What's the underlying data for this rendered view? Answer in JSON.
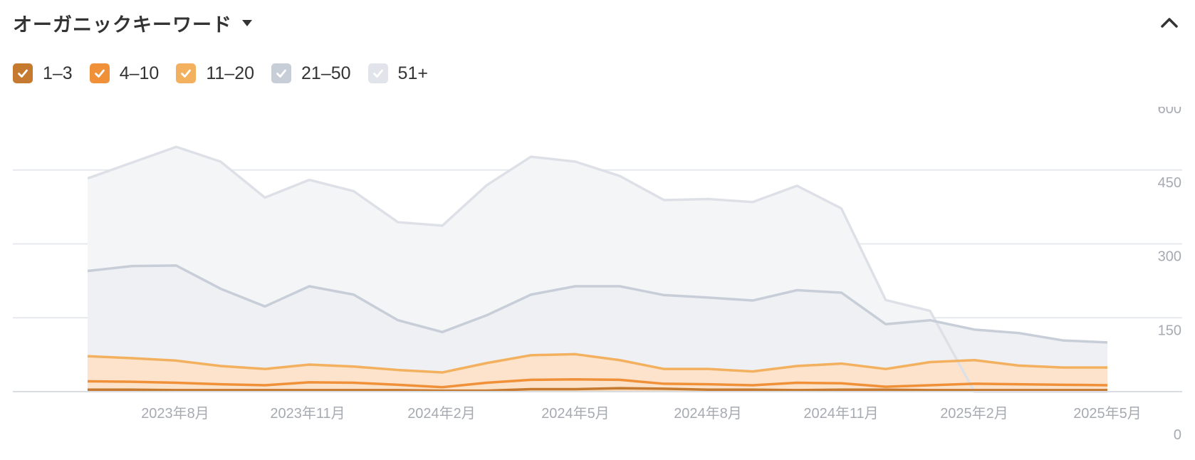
{
  "header": {
    "title": "オーガニックキーワード"
  },
  "legend": [
    {
      "label": "1–3",
      "color": "#c67a30",
      "checked": true
    },
    {
      "label": "4–10",
      "color": "#f0913a",
      "checked": true
    },
    {
      "label": "11–20",
      "color": "#f3b15f",
      "checked": true
    },
    {
      "label": "21–50",
      "color": "#c8ced8",
      "checked": true
    },
    {
      "label": "51+",
      "color": "#e1e5eb",
      "checked": true
    }
  ],
  "chart_data": {
    "type": "area",
    "stacked": true,
    "x_ticks": [
      "2023年8月",
      "2023年11月",
      "2024年2月",
      "2024年5月",
      "2024年8月",
      "2024年11月",
      "2025年2月",
      "2025年5月"
    ],
    "y_ticks": [
      0,
      150,
      300,
      450,
      600
    ],
    "ylim": [
      0,
      600
    ],
    "grid": true,
    "n_points": 24,
    "series": [
      {
        "name": "1–3",
        "color": "#c67a30",
        "cumulative": [
          4,
          4,
          3,
          3,
          3,
          3,
          3,
          3,
          2,
          2,
          5,
          5,
          7,
          6,
          4,
          4,
          3,
          4,
          4,
          3,
          3,
          3,
          3,
          3
        ]
      },
      {
        "name": "4–10",
        "color": "#f0913a",
        "cumulative": [
          21,
          20,
          18,
          15,
          13,
          19,
          18,
          14,
          9,
          18,
          24,
          25,
          24,
          16,
          15,
          13,
          18,
          17,
          10,
          13,
          16,
          15,
          14,
          13
        ]
      },
      {
        "name": "11–20",
        "color": "#f3b15f",
        "cumulative": [
          72,
          68,
          63,
          52,
          46,
          55,
          51,
          44,
          39,
          58,
          74,
          76,
          64,
          46,
          46,
          41,
          52,
          57,
          46,
          60,
          64,
          53,
          49,
          49
        ]
      },
      {
        "name": "21–50",
        "color": "#c8ced8",
        "cumulative": [
          245,
          255,
          256,
          209,
          173,
          214,
          197,
          145,
          121,
          155,
          197,
          214,
          214,
          196,
          191,
          185,
          206,
          201,
          137,
          145,
          126,
          119,
          104,
          100
        ]
      },
      {
        "name": "51+",
        "color": "#dde1e7",
        "cumulative": [
          433,
          465,
          497,
          467,
          394,
          430,
          407,
          344,
          337,
          419,
          477,
          467,
          438,
          389,
          391,
          385,
          418,
          372,
          186,
          164,
          0,
          0,
          0,
          0
        ]
      }
    ]
  }
}
